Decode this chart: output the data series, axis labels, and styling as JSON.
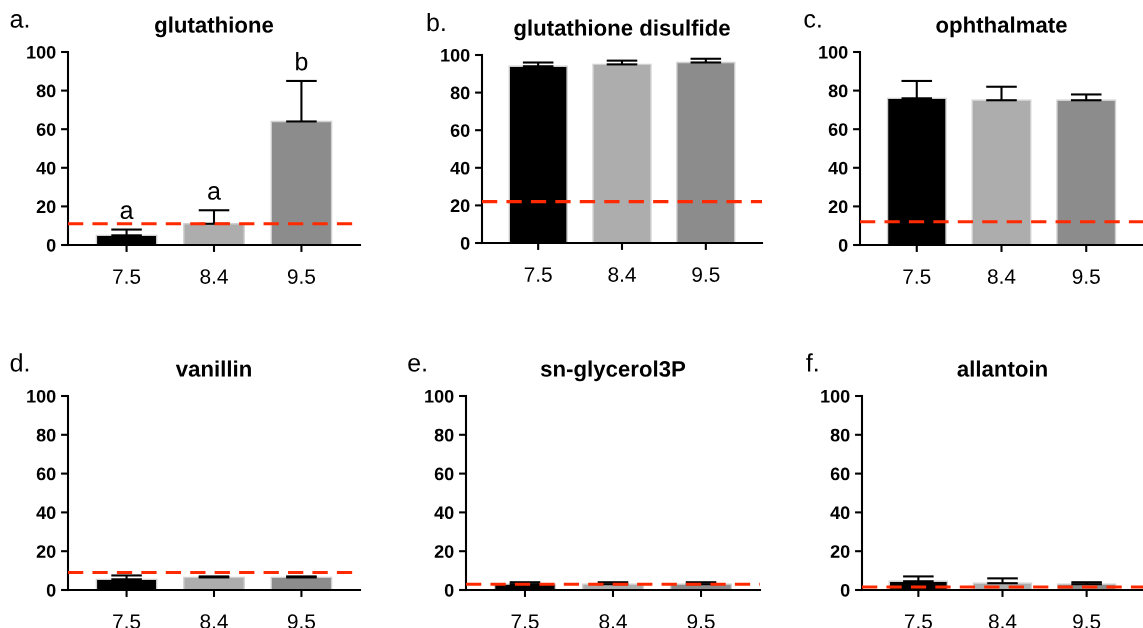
{
  "chart_data": [
    {
      "type": "bar",
      "title": "glutathione",
      "categories": [
        "7.5",
        "8.4",
        "9.5"
      ],
      "values": [
        5,
        11,
        64
      ],
      "errors": [
        [
          5,
          8
        ],
        [
          11,
          18
        ],
        [
          64,
          85
        ]
      ],
      "colors": [
        "#000000",
        "#adadae",
        "#8c8c8c"
      ],
      "ylim": [
        0,
        100
      ],
      "yticks": [
        0,
        20,
        40,
        60,
        80,
        100
      ],
      "ref_lines": [
        {
          "axis": "y",
          "value": 11,
          "color": "#ff2a00",
          "line_style": "dashed"
        }
      ],
      "annotations": [
        "a.",
        {
          "text": "a",
          "x": "7.5",
          "y": 8
        },
        {
          "text": "a",
          "x": "8.4",
          "y": 18
        },
        {
          "text": "b",
          "x": "9.5",
          "y": 85
        }
      ]
    },
    {
      "type": "bar",
      "title": "glutathione disulfide",
      "categories": [
        "7.5",
        "8.4",
        "9.5"
      ],
      "values": [
        94,
        95,
        96
      ],
      "errors": [
        [
          94,
          96
        ],
        [
          95,
          97
        ],
        [
          96,
          98
        ]
      ],
      "colors": [
        "#000000",
        "#adadae",
        "#8c8c8c"
      ],
      "ylim": [
        0,
        100
      ],
      "yticks": [
        0,
        20,
        40,
        60,
        80,
        100
      ],
      "ref_lines": [
        {
          "axis": "y",
          "value": 22,
          "color": "#ff2a00",
          "line_style": "dashed"
        }
      ],
      "annotations": [
        "b."
      ]
    },
    {
      "type": "bar",
      "title": "ophthalmate",
      "categories": [
        "7.5",
        "8.4",
        "9.5"
      ],
      "values": [
        76,
        75,
        75
      ],
      "errors": [
        [
          76,
          85
        ],
        [
          75,
          82
        ],
        [
          75,
          78
        ]
      ],
      "colors": [
        "#000000",
        "#adadae",
        "#8c8c8c"
      ],
      "ylim": [
        0,
        100
      ],
      "yticks": [
        0,
        20,
        40,
        60,
        80,
        100
      ],
      "ref_lines": [
        {
          "axis": "y",
          "value": 12,
          "color": "#ff2a00",
          "line_style": "dashed"
        }
      ],
      "annotations": [
        "c."
      ]
    },
    {
      "type": "bar",
      "title": "vanillin",
      "categories": [
        "7.5",
        "8.4",
        "9.5"
      ],
      "values": [
        5.5,
        6.5,
        6.5
      ],
      "errors": [
        [
          5.5,
          7.5
        ],
        [
          6.5,
          7
        ],
        [
          6.5,
          7
        ]
      ],
      "colors": [
        "#000000",
        "#adadae",
        "#8c8c8c"
      ],
      "ylim": [
        0,
        100
      ],
      "yticks": [
        0,
        20,
        40,
        60,
        80,
        100
      ],
      "ref_lines": [
        {
          "axis": "y",
          "value": 9,
          "color": "#ff2a00",
          "line_style": "dashed"
        }
      ],
      "annotations": [
        "d."
      ]
    },
    {
      "type": "bar",
      "title": "sn-glycerol3P",
      "categories": [
        "7.5",
        "8.4",
        "9.5"
      ],
      "values": [
        3,
        3,
        3
      ],
      "errors": [
        [
          3,
          4
        ],
        [
          3,
          4
        ],
        [
          3,
          4
        ]
      ],
      "colors": [
        "#000000",
        "#adadae",
        "#8c8c8c"
      ],
      "ylim": [
        0,
        100
      ],
      "yticks": [
        0,
        20,
        40,
        60,
        80,
        100
      ],
      "ref_lines": [
        {
          "axis": "y",
          "value": 3,
          "color": "#ff2a00",
          "line_style": "dashed"
        }
      ],
      "annotations": [
        "e."
      ]
    },
    {
      "type": "bar",
      "title": "allantoin",
      "categories": [
        "7.5",
        "8.4",
        "9.5"
      ],
      "values": [
        4.5,
        3.5,
        3
      ],
      "errors": [
        [
          4.5,
          7
        ],
        [
          3.5,
          6
        ],
        [
          3,
          4
        ]
      ],
      "colors": [
        "#000000",
        "#adadae",
        "#8c8c8c"
      ],
      "ylim": [
        0,
        100
      ],
      "yticks": [
        0,
        20,
        40,
        60,
        80,
        100
      ],
      "ref_lines": [
        {
          "axis": "y",
          "value": 1.5,
          "color": "#ff2a00",
          "line_style": "dashed"
        }
      ],
      "annotations": [
        "f."
      ]
    }
  ]
}
